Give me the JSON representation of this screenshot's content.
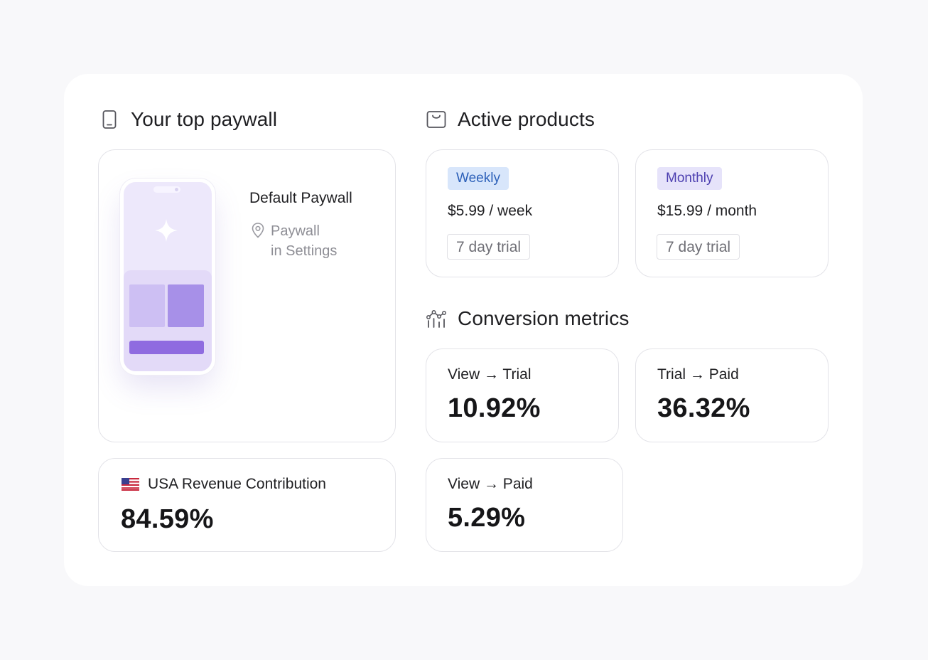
{
  "top_paywall": {
    "title": "Your top paywall",
    "icon": "phone-icon",
    "paywall_name": "Default Paywall",
    "location_line1": "Paywall",
    "location_line2": "in Settings",
    "location_icon": "location-pin-icon"
  },
  "active_products": {
    "title": "Active products",
    "icon": "shopping-bag-icon",
    "items": [
      {
        "badge": "Weekly",
        "price": "$5.99 / week",
        "trial": "7 day trial",
        "badge_color": "#2b5fb8"
      },
      {
        "badge": "Monthly",
        "price": "$15.99 / month",
        "trial": "7 day trial",
        "badge_color": "#4c3fb0"
      }
    ]
  },
  "conversion_metrics": {
    "title": "Conversion metrics",
    "icon": "chart-icon",
    "items": [
      {
        "label": "View → Trial",
        "value": "10.92%"
      },
      {
        "label": "Trial → Paid",
        "value": "36.32%"
      },
      {
        "label": "View → Paid",
        "value": "5.29%"
      }
    ]
  },
  "usa_revenue": {
    "label": "USA Revenue Contribution",
    "value": "84.59%",
    "icon": "us-flag-icon"
  },
  "colors": {
    "accent_purple": "#8f6be0",
    "background": "#f8f8fa",
    "card_border": "#e3e3e8"
  }
}
